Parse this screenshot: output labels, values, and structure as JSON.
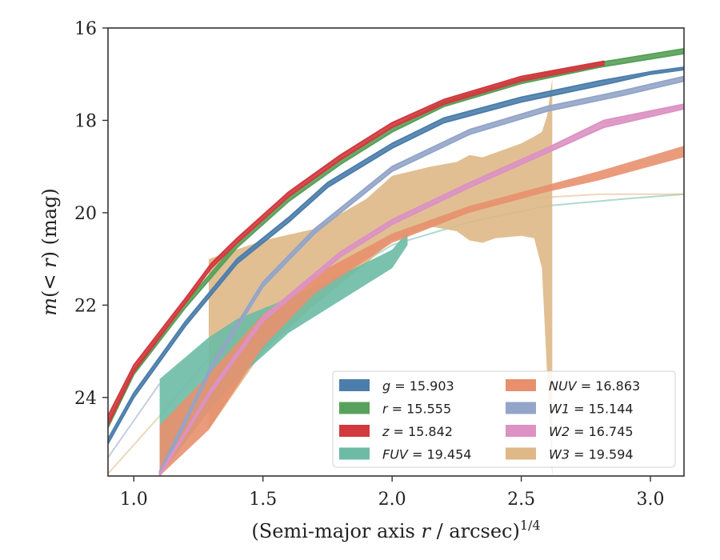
{
  "chart_data": {
    "type": "line",
    "xlabel": "(Semi-major axis r / arcsec)",
    "xlabel_parts": {
      "pre": "(Semi-major axis ",
      "var": "r",
      "post": " / arcsec)",
      "sup": "1/4"
    },
    "ylabel": "m(< r) (mag)",
    "ylabel_parts": {
      "m": "m",
      "open": "(",
      "lt": "< ",
      "r": "r",
      "close": ")",
      "unit": " (mag)"
    },
    "xlim": [
      0.9,
      3.13
    ],
    "ylim": [
      25.7,
      16
    ],
    "y_inverted": true,
    "x_ticks": [
      {
        "v": 1.0,
        "label": "1.0"
      },
      {
        "v": 1.5,
        "label": "1.5"
      },
      {
        "v": 2.0,
        "label": "2.0"
      },
      {
        "v": 2.5,
        "label": "2.5"
      },
      {
        "v": 3.0,
        "label": "3.0"
      }
    ],
    "y_ticks": [
      {
        "v": 16,
        "label": "16"
      },
      {
        "v": 18,
        "label": "18"
      },
      {
        "v": 20,
        "label": "20"
      },
      {
        "v": 22,
        "label": "22"
      },
      {
        "v": 24,
        "label": "24"
      }
    ],
    "grid": false,
    "legend_position": "lower-right",
    "series": [
      {
        "id": "g",
        "name": "g = 15.903",
        "var": "g",
        "value": "15.903",
        "color": "#4c7eab",
        "band": [
          [
            0.9,
            24.9,
            25.0
          ],
          [
            1.0,
            23.9,
            24.0
          ],
          [
            1.2,
            22.35,
            22.45
          ],
          [
            1.4,
            21.0,
            21.1
          ],
          [
            1.6,
            20.1,
            20.2
          ],
          [
            1.75,
            19.35,
            19.45
          ],
          [
            2.0,
            18.5,
            18.6
          ],
          [
            2.2,
            17.95,
            18.05
          ],
          [
            2.5,
            17.5,
            17.6
          ],
          [
            2.8,
            17.15,
            17.25
          ],
          [
            3.0,
            16.95,
            17.0
          ],
          [
            3.13,
            16.85,
            16.9
          ]
        ]
      },
      {
        "id": "r",
        "name": "r = 15.555",
        "var": "r",
        "value": "15.555",
        "color": "#58a15a",
        "band": [
          [
            0.9,
            24.55,
            24.65
          ],
          [
            1.0,
            23.4,
            23.5
          ],
          [
            1.2,
            21.95,
            22.05
          ],
          [
            1.4,
            20.65,
            20.75
          ],
          [
            1.6,
            19.65,
            19.75
          ],
          [
            1.8,
            18.85,
            18.95
          ],
          [
            2.0,
            18.15,
            18.25
          ],
          [
            2.2,
            17.6,
            17.7
          ],
          [
            2.5,
            17.1,
            17.2
          ],
          [
            2.8,
            16.75,
            16.85
          ],
          [
            3.13,
            16.45,
            16.55
          ]
        ]
      },
      {
        "id": "z",
        "name": "z = 15.842",
        "var": "z",
        "value": "15.842",
        "color": "#d1393d",
        "band": [
          [
            0.9,
            24.4,
            24.6
          ],
          [
            1.0,
            23.3,
            23.45
          ],
          [
            1.2,
            21.85,
            21.95
          ],
          [
            1.3,
            21.1,
            21.2
          ],
          [
            1.4,
            20.55,
            20.65
          ],
          [
            1.6,
            19.55,
            19.65
          ],
          [
            1.8,
            18.75,
            18.85
          ],
          [
            2.0,
            18.05,
            18.15
          ],
          [
            2.2,
            17.55,
            17.65
          ],
          [
            2.5,
            17.05,
            17.15
          ],
          [
            2.82,
            16.72,
            16.8
          ]
        ]
      },
      {
        "id": "fuv",
        "name": "FUV = 19.454",
        "var": "FUV",
        "value": "19.454",
        "color": "#6dbba5",
        "band": [
          [
            1.1,
            23.6,
            25.7
          ],
          [
            1.29,
            22.7,
            24.3
          ],
          [
            1.4,
            22.3,
            23.6
          ],
          [
            1.6,
            21.85,
            22.6
          ],
          [
            1.8,
            21.35,
            21.9
          ],
          [
            2.0,
            20.8,
            21.2
          ],
          [
            2.06,
            20.4,
            20.7
          ]
        ]
      },
      {
        "id": "nuv",
        "name": "NUV = 16.863",
        "var": "NUV",
        "value": "16.863",
        "color": "#e8906e",
        "band": [
          [
            1.1,
            24.6,
            25.7
          ],
          [
            1.29,
            23.5,
            24.7
          ],
          [
            1.5,
            22.2,
            22.9
          ],
          [
            1.7,
            21.35,
            21.75
          ],
          [
            2.0,
            20.45,
            20.65
          ],
          [
            2.3,
            19.85,
            20.0
          ],
          [
            2.6,
            19.4,
            19.55
          ],
          [
            2.8,
            19.1,
            19.3
          ],
          [
            3.13,
            18.55,
            18.8
          ]
        ]
      },
      {
        "id": "w1",
        "name": "W1 = 15.144",
        "var": "W1",
        "value": "15.144",
        "color": "#93a5c8",
        "band": [
          [
            1.1,
            25.6,
            25.7
          ],
          [
            1.3,
            23.3,
            23.4
          ],
          [
            1.5,
            21.5,
            21.6
          ],
          [
            1.7,
            20.35,
            20.45
          ],
          [
            2.0,
            19.0,
            19.1
          ],
          [
            2.3,
            18.2,
            18.3
          ],
          [
            2.6,
            17.7,
            17.8
          ],
          [
            2.9,
            17.35,
            17.45
          ],
          [
            3.13,
            17.05,
            17.15
          ]
        ]
      },
      {
        "id": "w2",
        "name": "W2 = 16.745",
        "var": "W2",
        "value": "16.745",
        "color": "#dc92c3",
        "band": [
          [
            1.1,
            25.65,
            25.7
          ],
          [
            1.3,
            23.8,
            23.9
          ],
          [
            1.5,
            22.25,
            22.35
          ],
          [
            1.8,
            20.85,
            20.95
          ],
          [
            2.0,
            20.15,
            20.25
          ],
          [
            2.3,
            19.35,
            19.45
          ],
          [
            2.6,
            18.6,
            18.7
          ],
          [
            2.82,
            18.0,
            18.15
          ],
          [
            3.13,
            17.65,
            17.75
          ]
        ]
      },
      {
        "id": "w3",
        "name": "W3 = 19.594",
        "var": "W3",
        "value": "19.594",
        "color": "#deb887",
        "band": [
          [
            1.29,
            21.0,
            24.7
          ],
          [
            1.5,
            20.6,
            23.0
          ],
          [
            1.7,
            20.35,
            22.0
          ],
          [
            1.9,
            19.7,
            21.1
          ],
          [
            2.0,
            19.2,
            20.6
          ],
          [
            2.15,
            19.0,
            20.3
          ],
          [
            2.25,
            18.9,
            20.4
          ],
          [
            2.3,
            18.75,
            20.6
          ],
          [
            2.35,
            18.8,
            20.65
          ],
          [
            2.4,
            18.7,
            20.55
          ],
          [
            2.5,
            18.5,
            20.5
          ],
          [
            2.55,
            18.35,
            20.55
          ],
          [
            2.58,
            18.25,
            21.2
          ],
          [
            2.6,
            17.9,
            23.5
          ],
          [
            2.62,
            17.1,
            25.7
          ]
        ]
      }
    ],
    "extensions": [
      {
        "id": "fuv-ext",
        "color": "#6dbba5",
        "points": [
          [
            1.1,
            25.7
          ],
          [
            1.4,
            23.0
          ],
          [
            1.7,
            21.7
          ],
          [
            2.0,
            20.7
          ],
          [
            2.3,
            20.2
          ],
          [
            2.6,
            19.85
          ],
          [
            2.9,
            19.7
          ],
          [
            3.13,
            19.6
          ]
        ]
      },
      {
        "id": "w3-ext",
        "color": "#deb887",
        "points": [
          [
            0.9,
            25.65
          ],
          [
            1.1,
            24.4
          ],
          [
            1.3,
            23.1
          ],
          [
            1.6,
            21.8
          ],
          [
            1.9,
            20.8
          ],
          [
            2.2,
            20.1
          ],
          [
            2.5,
            19.7
          ],
          [
            2.8,
            19.6
          ],
          [
            3.13,
            19.6
          ]
        ]
      },
      {
        "id": "w2-ext",
        "color": "#dc92c3",
        "points": [
          [
            2.82,
            18.07
          ],
          [
            3.0,
            17.85
          ],
          [
            3.13,
            17.7
          ]
        ]
      },
      {
        "id": "w1-left",
        "color": "#93a5c8",
        "points": [
          [
            0.9,
            25.3
          ],
          [
            1.0,
            24.5
          ],
          [
            1.1,
            23.7
          ]
        ]
      }
    ]
  }
}
